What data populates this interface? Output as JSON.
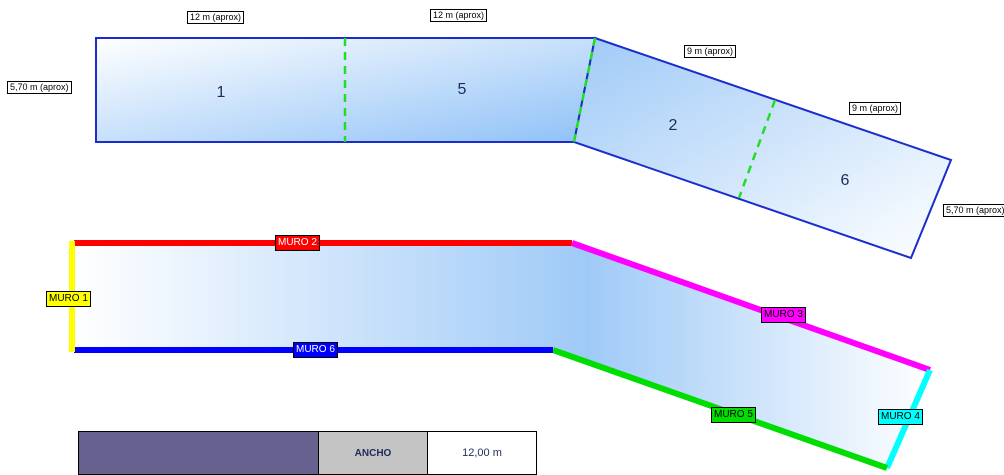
{
  "plan": {
    "sections": [
      "1",
      "5",
      "2",
      "6"
    ],
    "dimensions": {
      "top_left": "12 m (aprox)",
      "top_right": "12 m (aprox)",
      "height_left": "5,70 m (aprox)",
      "diag_1": "9 m (aprox)",
      "diag_2": "9 m (aprox)",
      "height_right": "5,70 m (aprox)"
    }
  },
  "walls": {
    "muro1": {
      "label": "MURO 1",
      "color": "#ffff00"
    },
    "muro2": {
      "label": "MURO 2",
      "color": "#ff0000"
    },
    "muro3": {
      "label": "MURO 3",
      "color": "#ff00ff"
    },
    "muro4": {
      "label": "MURO 4",
      "color": "#00ffff"
    },
    "muro5": {
      "label": "MURO 5",
      "color": "#00dd00"
    },
    "muro6": {
      "label": "MURO 6",
      "color": "#0000ff"
    }
  },
  "table": {
    "header": "ANCHO",
    "value": "12,00 m"
  },
  "colors": {
    "outline": "#1a2ccc",
    "divider": "#22dd22",
    "fill_light": "#ffffff",
    "fill_dark": "#8fc1f7",
    "swatch": "#66618f"
  }
}
